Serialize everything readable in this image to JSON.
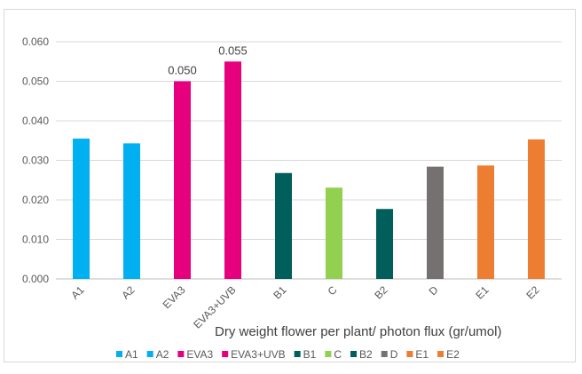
{
  "chart_data": {
    "type": "bar",
    "title": "",
    "xlabel": "Dry weight flower per plant/ photon flux (gr/umol)",
    "ylabel": "",
    "ylim": [
      0,
      0.06
    ],
    "yticks": [
      "0.000",
      "0.010",
      "0.020",
      "0.030",
      "0.040",
      "0.050",
      "0.060"
    ],
    "grid": true,
    "legend_position": "bottom",
    "categories": [
      "A1",
      "A2",
      "EVA3",
      "EVA3+UVB",
      "B1",
      "C",
      "B2",
      "D",
      "E1",
      "E2"
    ],
    "values": [
      0.0355,
      0.0343,
      0.05,
      0.055,
      0.0268,
      0.0231,
      0.0177,
      0.0284,
      0.0287,
      0.0353
    ],
    "colors": [
      "#00b0f0",
      "#00b0f0",
      "#e6007e",
      "#e6007e",
      "#005e5b",
      "#92d050",
      "#005e5b",
      "#767171",
      "#ed7d31",
      "#ed7d31"
    ],
    "data_labels": [
      "",
      "",
      "0.050",
      "0.055",
      "",
      "",
      "",
      "",
      "",
      ""
    ],
    "legend": [
      "A1",
      "A2",
      "EVA3",
      "EVA3+UVB",
      "B1",
      "C",
      "B2",
      "D",
      "E1",
      "E2"
    ]
  }
}
